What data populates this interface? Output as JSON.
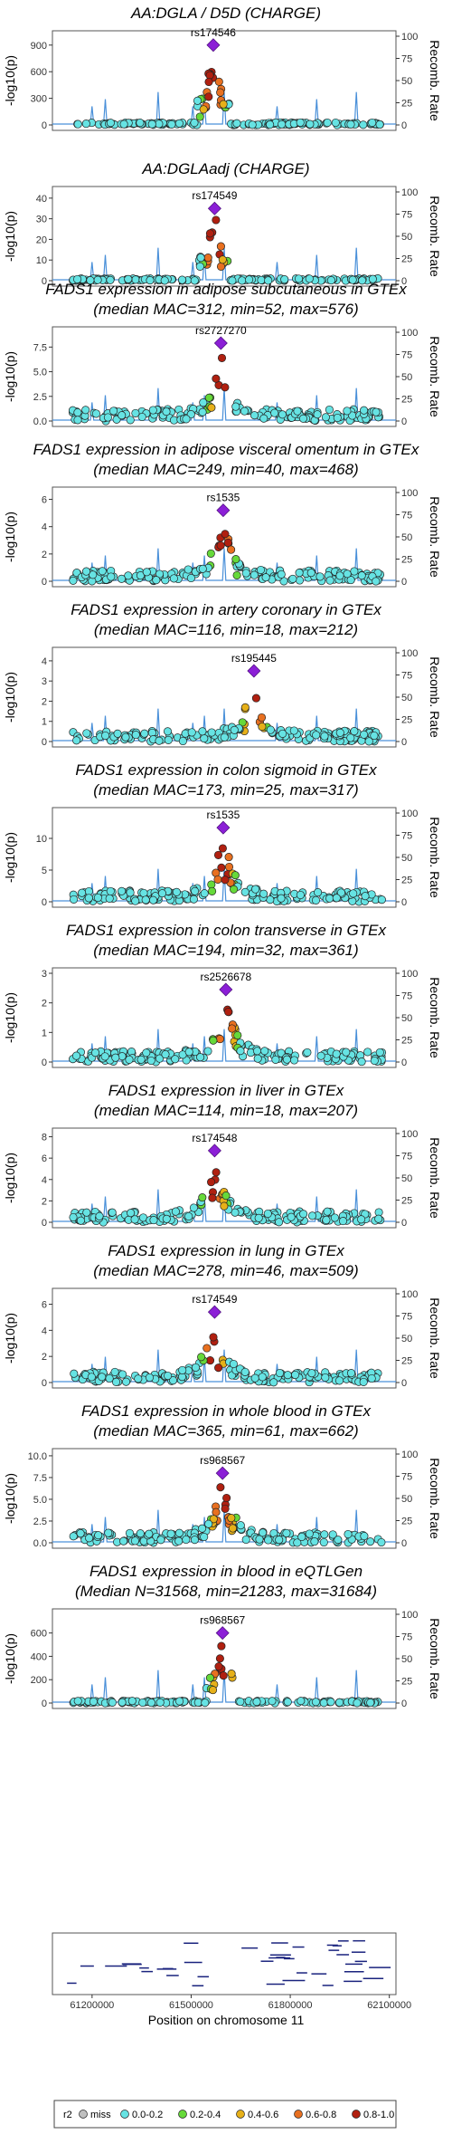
{
  "figure": {
    "xaxis_label": "Position on chromosome 11",
    "x_ticks": [
      "61200000",
      "61500000",
      "61800000",
      "62100000"
    ],
    "ylabel_left": "-log10(p)",
    "ylabel_right": "Recomb. Rate",
    "legend": {
      "title": "r2",
      "items": [
        {
          "label": "miss",
          "color": "#bfbfbf"
        },
        {
          "label": "0.0-0.2",
          "color": "#66e3e3"
        },
        {
          "label": "0.2-0.4",
          "color": "#66d93a"
        },
        {
          "label": "0.4-0.6",
          "color": "#e6b019"
        },
        {
          "label": "0.6-0.8",
          "color": "#e87020"
        },
        {
          "label": "0.8-1.0",
          "color": "#b02010"
        }
      ]
    },
    "lead_color": "#8b1fd6",
    "recomb_color": "#4a90d9"
  },
  "chart_data": [
    {
      "type": "scatter",
      "title_lines": [
        "AA:DGLA / D5D (CHARGE)"
      ],
      "lead_label": "rs174546",
      "lead_x": 61567000,
      "lead_y": 900,
      "ylim": [
        0,
        1000
      ],
      "y_ticks": [
        0,
        300,
        600,
        900
      ],
      "y_tick_labels": [
        "0",
        "300",
        "600",
        "900"
      ]
    },
    {
      "type": "scatter",
      "title_lines": [
        "AA:DGLAadj (CHARGE)"
      ],
      "lead_label": "rs174549",
      "lead_x": 61571000,
      "lead_y": 35,
      "ylim": [
        0,
        43
      ],
      "y_ticks": [
        0,
        10,
        20,
        30,
        40
      ],
      "y_tick_labels": [
        "0",
        "10",
        "20",
        "30",
        "40"
      ]
    },
    {
      "type": "scatter",
      "title_lines": [
        "FADS1 expression in adipose subcutaneous in GTEx",
        "(median MAC=312, min=52, max=576)"
      ],
      "lead_label": "rs2727270",
      "lead_x": 61590000,
      "lead_y": 7.9,
      "ylim": [
        0,
        9
      ],
      "y_ticks": [
        0,
        2.5,
        5,
        7.5
      ],
      "y_tick_labels": [
        "0.0",
        "2.5",
        "5.0",
        "7.5"
      ]
    },
    {
      "type": "scatter",
      "title_lines": [
        "FADS1 expression in adipose visceral omentum in GTEx",
        "(median MAC=249, min=40, max=468)"
      ],
      "lead_label": "rs1535",
      "lead_x": 61597000,
      "lead_y": 5.2,
      "ylim": [
        0,
        6.5
      ],
      "y_ticks": [
        0,
        2,
        4,
        6
      ],
      "y_tick_labels": [
        "0",
        "2",
        "4",
        "6"
      ]
    },
    {
      "type": "scatter",
      "title_lines": [
        "FADS1 expression in artery coronary in GTEx",
        "(median MAC=116, min=18, max=212)"
      ],
      "lead_label": "rs195445",
      "lead_x": 61690000,
      "lead_y": 3.5,
      "ylim": [
        0,
        4.4
      ],
      "y_ticks": [
        0,
        1,
        2,
        3,
        4
      ],
      "y_tick_labels": [
        "0",
        "1",
        "2",
        "3",
        "4"
      ]
    },
    {
      "type": "scatter",
      "title_lines": [
        "FADS1 expression in colon sigmoid in GTEx",
        "(median MAC=173, min=25, max=317)"
      ],
      "lead_label": "rs1535",
      "lead_x": 61597000,
      "lead_y": 11.7,
      "ylim": [
        0,
        14
      ],
      "y_ticks": [
        0,
        5,
        10
      ],
      "y_tick_labels": [
        "0",
        "5",
        "10"
      ]
    },
    {
      "type": "scatter",
      "title_lines": [
        "FADS1 expression in colon transverse in GTEx",
        "(median MAC=194, min=32, max=361)"
      ],
      "lead_label": "rs2526678",
      "lead_x": 61605000,
      "lead_y": 2.45,
      "ylim": [
        0,
        3
      ],
      "y_ticks": [
        0,
        1,
        2,
        3
      ],
      "y_tick_labels": [
        "0",
        "1",
        "2",
        "3"
      ]
    },
    {
      "type": "scatter",
      "title_lines": [
        "FADS1 expression in liver in GTEx",
        "(median MAC=114, min=18, max=207)"
      ],
      "lead_label": "rs174548",
      "lead_x": 61571000,
      "lead_y": 6.7,
      "ylim": [
        0,
        8.3
      ],
      "y_ticks": [
        0,
        2,
        4,
        6,
        8
      ],
      "y_tick_labels": [
        "0",
        "2",
        "4",
        "6",
        "8"
      ]
    },
    {
      "type": "scatter",
      "title_lines": [
        "FADS1 expression in lung in GTEx",
        "(median MAC=278, min=46, max=509)"
      ],
      "lead_label": "rs174549",
      "lead_x": 61571000,
      "lead_y": 5.4,
      "ylim": [
        0,
        6.8
      ],
      "y_ticks": [
        0,
        2,
        4,
        6
      ],
      "y_tick_labels": [
        "0",
        "2",
        "4",
        "6"
      ]
    },
    {
      "type": "scatter",
      "title_lines": [
        "FADS1 expression in whole blood in GTEx",
        "(median MAC=365, min=61, max=662)"
      ],
      "lead_label": "rs968567",
      "lead_x": 61595000,
      "lead_y": 8.0,
      "ylim": [
        0,
        10.2
      ],
      "y_ticks": [
        0,
        2.5,
        5,
        7.5,
        10
      ],
      "y_tick_labels": [
        "0.0",
        "2.5",
        "5.0",
        "7.5",
        "10.0"
      ]
    },
    {
      "type": "scatter",
      "title_lines": [
        "FADS1 expression in blood in eQTLGen",
        "(Median N=31568, min=21283, max=31684)"
      ],
      "lead_label": "rs968567",
      "lead_x": 61595000,
      "lead_y": 600,
      "ylim": [
        0,
        760
      ],
      "y_ticks": [
        0,
        200,
        400,
        600
      ],
      "y_tick_labels": [
        "0",
        "200",
        "400",
        "600"
      ]
    }
  ],
  "recomb_ticks": [
    "0",
    "25",
    "50",
    "75",
    "100"
  ]
}
